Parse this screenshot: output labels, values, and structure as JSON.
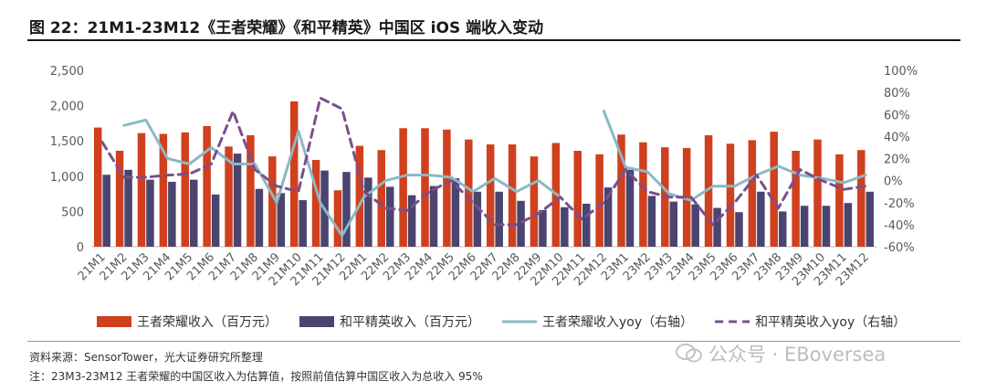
{
  "title": "图 22：21M1-23M12《王者荣耀》《和平精英》中国区 iOS 端收入变动",
  "source": "资料来源：SensorTower，光大证券研究所整理",
  "note": "注：23M3-23M12 王者荣耀的中国区收入为估算值，按照前值估算中国区收入为总收入 95%",
  "watermark": "公众号 · EBoversea",
  "colors": {
    "wzry_bar": "#D0401E",
    "hpjy_bar": "#4A4470",
    "wzry_line": "#8CB8C6",
    "hpjy_line": "#7A4F8C",
    "axis_text": "#595959",
    "grid": "#d9d9d9"
  },
  "chart_data": {
    "type": "bar",
    "categories": [
      "21M1",
      "21M2",
      "21M3",
      "21M4",
      "21M5",
      "21M6",
      "21M7",
      "21M8",
      "21M9",
      "21M10",
      "21M11",
      "21M12",
      "22M1",
      "22M2",
      "22M3",
      "22M4",
      "22M5",
      "22M6",
      "22M7",
      "22M8",
      "22M9",
      "22M10",
      "22M11",
      "22M12",
      "23M1",
      "23M2",
      "23M3",
      "23M4",
      "23M5",
      "23M6",
      "23M7",
      "23M8",
      "23M9",
      "23M10",
      "23M11",
      "23M12"
    ],
    "left_axis": {
      "ylim": [
        0,
        2500
      ],
      "ticks": [
        "0",
        "500",
        "1,000",
        "1,500",
        "2,000",
        "2,500"
      ]
    },
    "right_axis": {
      "ylim": [
        -60,
        100
      ],
      "ticks": [
        "-60%",
        "-40%",
        "-20%",
        "0%",
        "20%",
        "40%",
        "60%",
        "80%",
        "100%"
      ]
    },
    "grid": false,
    "legend_position": "bottom",
    "series": [
      {
        "name": "王者荣耀收入（百万元）",
        "kind": "bar",
        "axis": "left",
        "values": [
          1690,
          1360,
          1610,
          1600,
          1620,
          1710,
          1420,
          1580,
          1280,
          2060,
          1230,
          800,
          1430,
          1370,
          1680,
          1680,
          1660,
          1520,
          1450,
          1450,
          1280,
          1470,
          1360,
          1310,
          1590,
          1480,
          1410,
          1400,
          1580,
          1460,
          1510,
          1630,
          1360,
          1520,
          1310,
          1370
        ]
      },
      {
        "name": "和平精英收入（百万元）",
        "kind": "bar",
        "axis": "left",
        "values": [
          1020,
          1090,
          950,
          920,
          950,
          740,
          1320,
          820,
          760,
          660,
          1080,
          1060,
          980,
          850,
          730,
          860,
          970,
          780,
          780,
          650,
          520,
          560,
          610,
          840,
          1090,
          720,
          640,
          600,
          550,
          490,
          780,
          500,
          580,
          580,
          620,
          780
        ]
      },
      {
        "name": "王者荣耀收入yoy（右轴）",
        "kind": "line",
        "axis": "right",
        "dash": false,
        "values": [
          null,
          50,
          55,
          20,
          15,
          30,
          15,
          15,
          -20,
          45,
          -20,
          -50,
          -15,
          0,
          5,
          5,
          3,
          -10,
          2,
          -10,
          0,
          -15,
          null,
          63,
          12,
          8,
          -12,
          -18,
          -5,
          -5,
          5,
          13,
          5,
          2,
          -2,
          5
        ]
      },
      {
        "name": "和平精英收入yoy（右轴）",
        "kind": "line",
        "axis": "right",
        "dash": true,
        "values": [
          35,
          3,
          3,
          5,
          6,
          15,
          63,
          10,
          -5,
          -10,
          75,
          65,
          -10,
          -25,
          -27,
          -10,
          0,
          -20,
          -40,
          -40,
          -30,
          -15,
          -35,
          -20,
          10,
          -10,
          -15,
          -15,
          -40,
          -20,
          5,
          -25,
          10,
          0,
          -8,
          -5
        ]
      }
    ]
  }
}
